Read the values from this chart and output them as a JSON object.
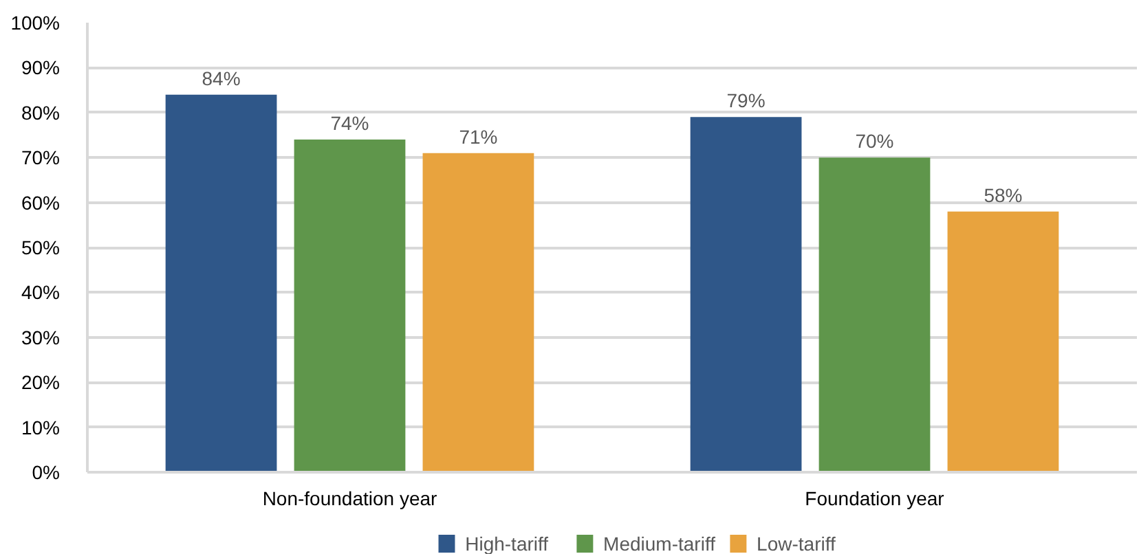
{
  "chart_data": {
    "type": "bar",
    "categories": [
      "Non-foundation year",
      "Foundation year"
    ],
    "series": [
      {
        "name": "High-tariff",
        "color": "#2f5789",
        "values": [
          84,
          79
        ],
        "value_labels": [
          "84%",
          "79%"
        ]
      },
      {
        "name": "Medium-tariff",
        "color": "#5f964b",
        "values": [
          74,
          70
        ],
        "value_labels": [
          "74%",
          "70%"
        ]
      },
      {
        "name": "Low-tariff",
        "color": "#e8a33e",
        "values": [
          71,
          58
        ],
        "value_labels": [
          "71%",
          "58%"
        ]
      }
    ],
    "ylim": [
      0,
      100
    ],
    "yticks": [
      {
        "value": 0,
        "label": "0%"
      },
      {
        "value": 10,
        "label": "10%"
      },
      {
        "value": 20,
        "label": "20%"
      },
      {
        "value": 30,
        "label": "30%"
      },
      {
        "value": 40,
        "label": "40%"
      },
      {
        "value": 50,
        "label": "50%"
      },
      {
        "value": 60,
        "label": "60%"
      },
      {
        "value": 70,
        "label": "70%"
      },
      {
        "value": 80,
        "label": "80%"
      },
      {
        "value": 90,
        "label": "90%"
      },
      {
        "value": 100,
        "label": "100%"
      }
    ],
    "grid": "y",
    "legend": "bottom"
  }
}
